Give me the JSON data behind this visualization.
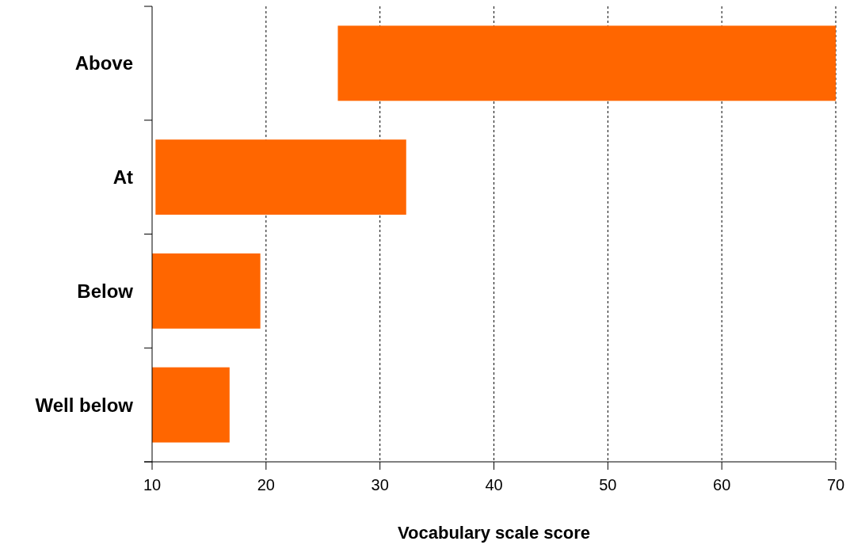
{
  "chart_data": {
    "type": "bar",
    "orientation": "horizontal",
    "xlabel": "Vocabulary scale score",
    "categories": [
      "Above",
      "At",
      "Below",
      "Well below"
    ],
    "base": [
      26.3,
      10.3,
      10,
      10
    ],
    "values": [
      43.7,
      22,
      9.5,
      6.8
    ],
    "color": "#ff6600",
    "xlim": [
      10,
      70
    ],
    "xticks": [
      10,
      20,
      30,
      40,
      50,
      60,
      70
    ],
    "grid": "x"
  }
}
